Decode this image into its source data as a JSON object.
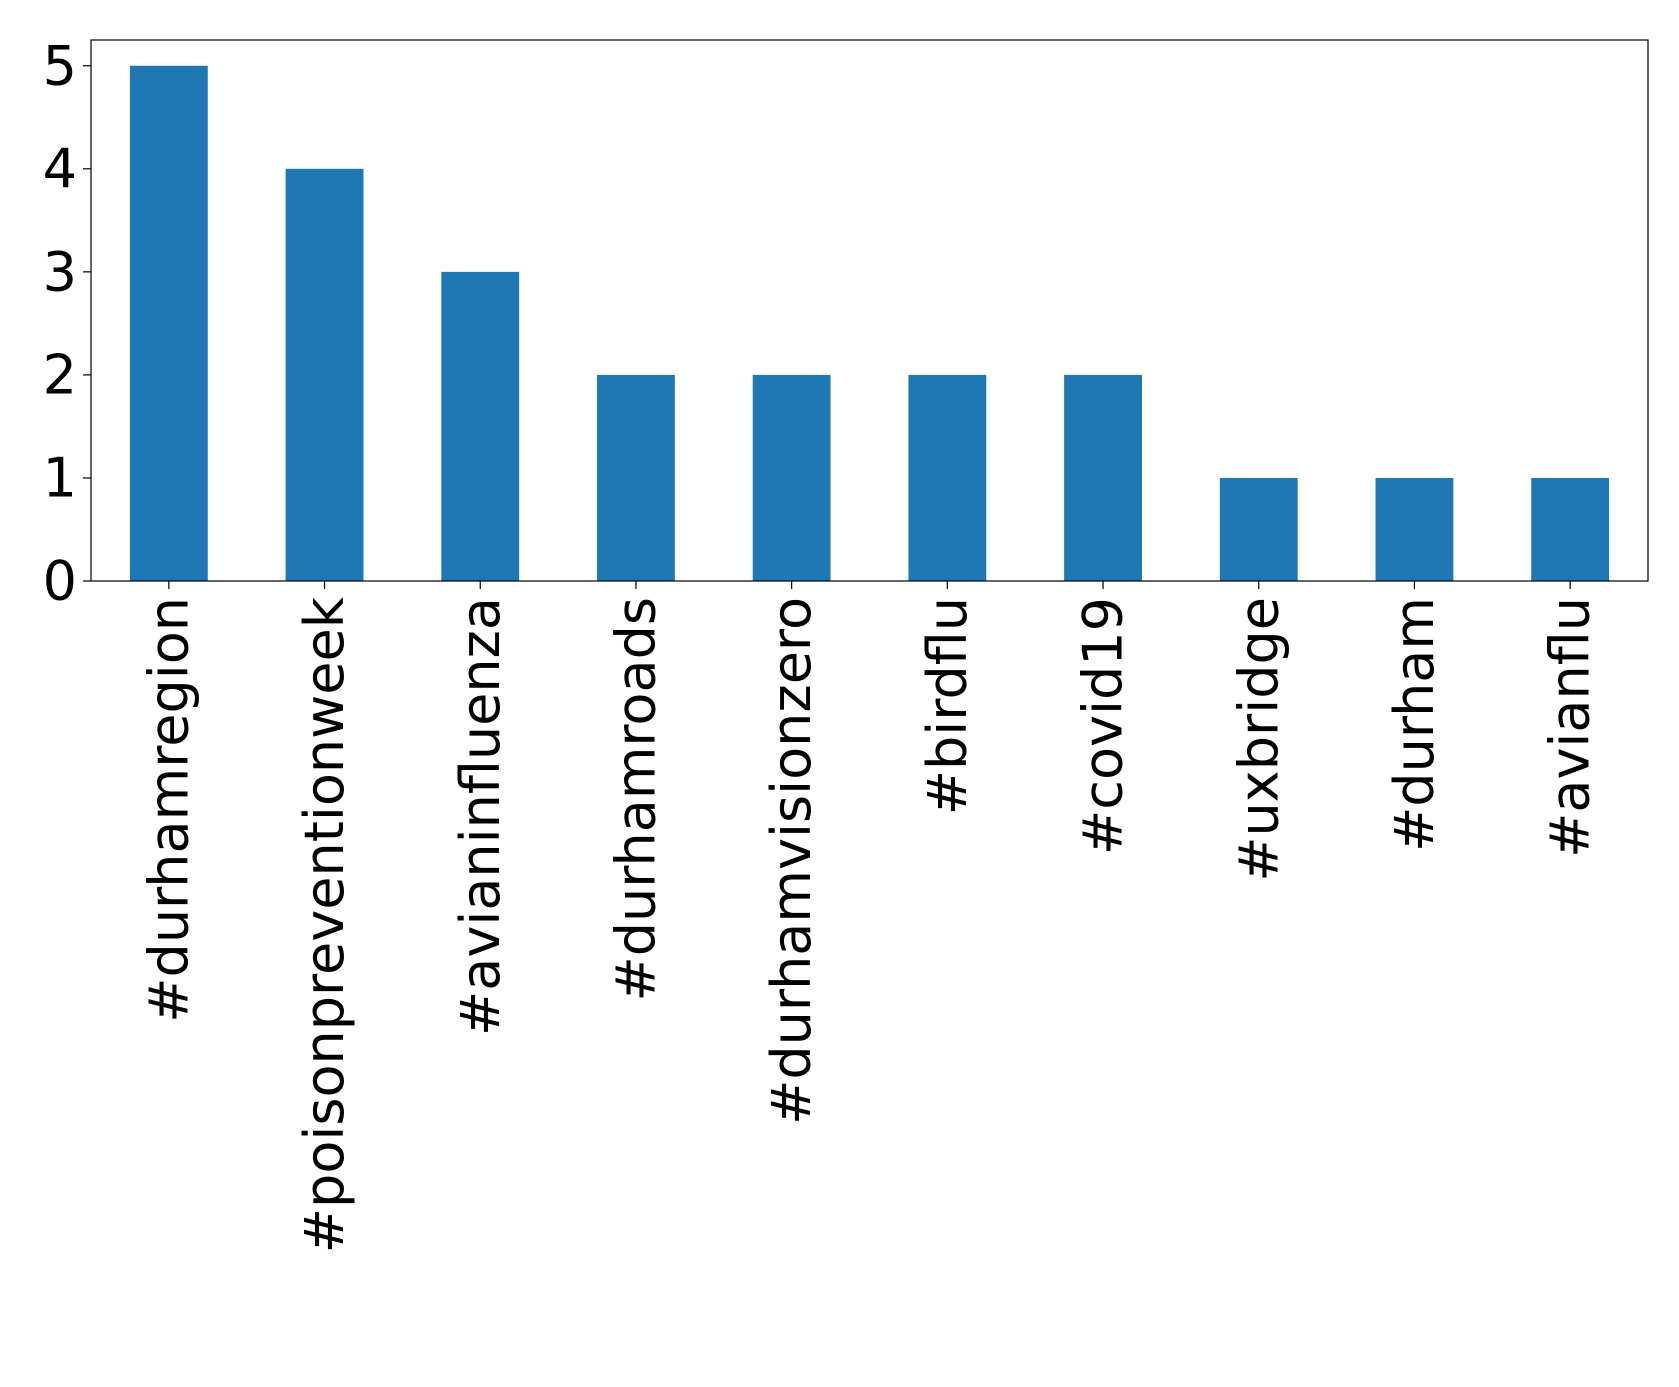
{
  "chart_data": {
    "type": "bar",
    "categories": [
      "#durhamregion",
      "#poisonpreventionweek",
      "#avianinfluenza",
      "#durhamroads",
      "#durhamvisionzero",
      "#birdflu",
      "#covid19",
      "#uxbridge",
      "#durham",
      "#avianflu"
    ],
    "values": [
      5,
      4,
      3,
      2,
      2,
      2,
      2,
      1,
      1,
      1
    ],
    "color": "#1f77b4",
    "ylim": [
      0,
      5.25
    ],
    "yticks": [
      0,
      1,
      2,
      3,
      4,
      5
    ],
    "grid": false
  }
}
